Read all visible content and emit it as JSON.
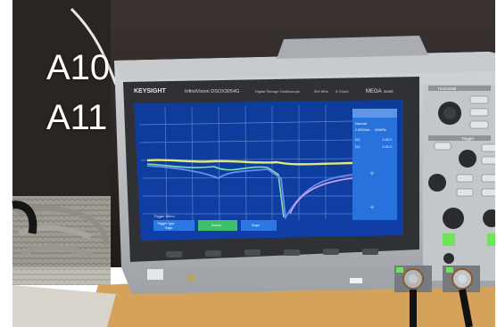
{
  "overlay": {
    "label_1": "A10",
    "label_2": "A11"
  },
  "scope": {
    "brand": "KEYSIGHT",
    "model_line": "InfiniiVision DSOX3054G",
    "model_desc": "Digital Storage Oscilloscope",
    "bandwidth": "500 MHz",
    "sample_rate": "5 GSa/s",
    "mega_zoom_text": "MEGA",
    "mega_zoom_sub": "zoom",
    "horizontal_label": "Horizontal",
    "trigger_label": "Trigger"
  },
  "screen": {
    "side_panel_status": "Normal",
    "side_panel_rate": "2.50GSa/s",
    "side_panel_rate2": "500kPts",
    "side_panel_row1_label": "DC",
    "side_panel_row1_value": "1.00:1",
    "side_panel_row2_label": "DC",
    "side_panel_row2_value": "1.00:1",
    "menu_title": "Trigger Menu",
    "softkey_1": "Trigger Type",
    "softkey_1_val": "Edge",
    "softkey_2": "Source",
    "softkey_3": "Slope"
  },
  "colors": {
    "trace_yellow": "#e6e873",
    "trace_green": "#7fe1a6",
    "trace_blue": "#6c8df0",
    "trace_pink": "#d8a3e6",
    "screen_bg": "#103ea6",
    "grid": "#6c8fd6",
    "side_panel": "#2b78e4",
    "bezel": "#2f3134",
    "body_gray": "#b8bcc0",
    "wall": "#2f2b29",
    "table_wood": "#d4a25a",
    "cable_gray": "#9aa29a",
    "bnc_green": "#6fe35a"
  }
}
